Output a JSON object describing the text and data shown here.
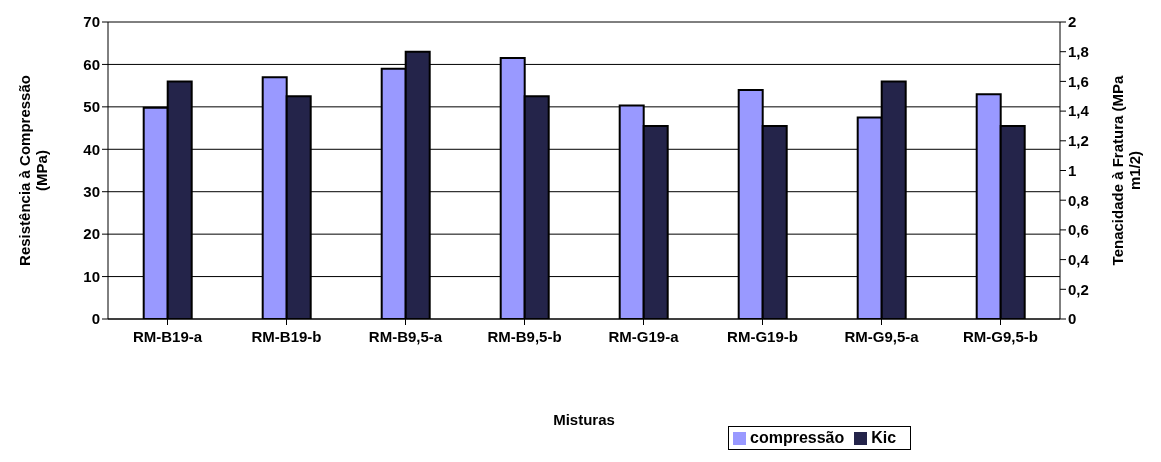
{
  "chart_data": {
    "type": "bar",
    "categories": [
      "RM-B19-a",
      "RM-B19-b",
      "RM-B9,5-a",
      "RM-B9,5-b",
      "RM-G19-a",
      "RM-G19-b",
      "RM-G9,5-a",
      "RM-G9,5-b"
    ],
    "series": [
      {
        "name": "compressão",
        "color": "#9999ff",
        "values": [
          49.8,
          57,
          59,
          61.5,
          50.3,
          54,
          47.5,
          53
        ]
      },
      {
        "name": "Kic",
        "color": "#24244a",
        "axis": "y2",
        "values": [
          1.6,
          1.5,
          1.8,
          1.5,
          1.3,
          1.3,
          1.6,
          1.3
        ]
      }
    ],
    "xlabel": "Misturas",
    "ylabel": "Resistência à Compressão (MPa)",
    "y2label": "Tenacidade à Fratura (MPa m1/2)",
    "ylim": [
      0,
      70
    ],
    "yticks": [
      0,
      10,
      20,
      30,
      40,
      50,
      60,
      70
    ],
    "y2lim": [
      0,
      2
    ],
    "y2ticks": [
      0,
      {
        "value": 0.2,
        "label": "0,2"
      },
      {
        "value": 0.4,
        "label": "0,4"
      },
      {
        "value": 0.6,
        "label": "0,6"
      },
      {
        "value": 0.8,
        "label": "0,8"
      },
      1,
      {
        "value": 1.2,
        "label": "1,2"
      },
      {
        "value": 1.4,
        "label": "1,4"
      },
      {
        "value": 1.6,
        "label": "1,6"
      },
      {
        "value": 1.8,
        "label": "1,8"
      },
      2
    ],
    "grid": "y",
    "legend": "bottom"
  }
}
